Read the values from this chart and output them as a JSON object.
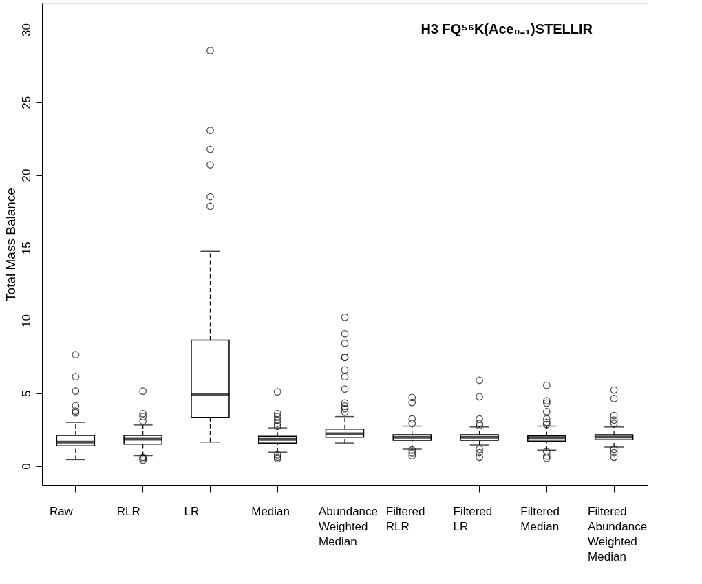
{
  "chart_data": {
    "type": "box",
    "ylabel": "Total Mass Balance",
    "annotations": [
      "H3 FQ⁵⁶K(Ace₀₋₁)STELLIR"
    ],
    "categories": [
      "Raw",
      "RLR",
      "LR",
      "Median",
      "Abundance Weighted Median",
      "Filtered RLR",
      "Filtered LR",
      "Filtered Median",
      "Filtered Abundance Weighted Median"
    ],
    "ylim": [
      -1.3,
      31.8
    ],
    "yticks": [
      0,
      5,
      10,
      15,
      20,
      25,
      30
    ],
    "grid": false,
    "boxes": [
      {
        "low": 0.43,
        "q1": 1.38,
        "median": 1.64,
        "q3": 2.1,
        "high": 3.0,
        "outliers": [
          7.65,
          6.14,
          5.15,
          4.14,
          3.78,
          3.66
        ]
      },
      {
        "low": 0.71,
        "q1": 1.5,
        "median": 1.85,
        "q3": 2.1,
        "high": 2.82,
        "outliers": [
          5.15,
          3.6,
          3.4,
          3.1,
          0.6,
          0.5,
          0.4
        ]
      },
      {
        "low": 1.64,
        "q1": 3.35,
        "median": 4.92,
        "q3": 8.65,
        "high": 14.76,
        "outliers": [
          28.56,
          23.07,
          21.77,
          20.71,
          18.51,
          17.85
        ]
      },
      {
        "low": 0.96,
        "q1": 1.57,
        "median": 1.83,
        "q3": 2.05,
        "high": 2.62,
        "outliers": [
          5.1,
          3.6,
          3.4,
          3.16,
          2.93,
          2.74,
          0.76,
          0.6,
          0.5
        ]
      },
      {
        "low": 1.58,
        "q1": 1.97,
        "median": 2.22,
        "q3": 2.54,
        "high": 3.4,
        "outliers": [
          10.22,
          9.09,
          8.43,
          7.49,
          7.45,
          6.6,
          6.14,
          5.29,
          4.33,
          4.12,
          3.94,
          3.7
        ]
      },
      {
        "low": 1.16,
        "q1": 1.77,
        "median": 1.97,
        "q3": 2.15,
        "high": 2.74,
        "outliers": [
          4.71,
          4.37,
          3.24,
          2.93,
          1.1,
          0.9,
          0.7
        ]
      },
      {
        "low": 1.44,
        "q1": 1.77,
        "median": 1.97,
        "q3": 2.15,
        "high": 2.68,
        "outliers": [
          5.89,
          4.76,
          3.24,
          2.93,
          2.78,
          1.15,
          0.92,
          0.6
        ]
      },
      {
        "low": 1.1,
        "q1": 1.72,
        "median": 1.95,
        "q3": 2.08,
        "high": 2.74,
        "outliers": [
          5.55,
          4.48,
          4.33,
          3.74,
          3.24,
          3.0,
          2.85,
          0.99,
          0.68,
          0.53
        ]
      },
      {
        "low": 1.3,
        "q1": 1.81,
        "median": 2.0,
        "q3": 2.15,
        "high": 2.68,
        "outliers": [
          5.22,
          4.64,
          3.47,
          3.16,
          2.93,
          1.15,
          0.92,
          0.6
        ]
      }
    ]
  }
}
